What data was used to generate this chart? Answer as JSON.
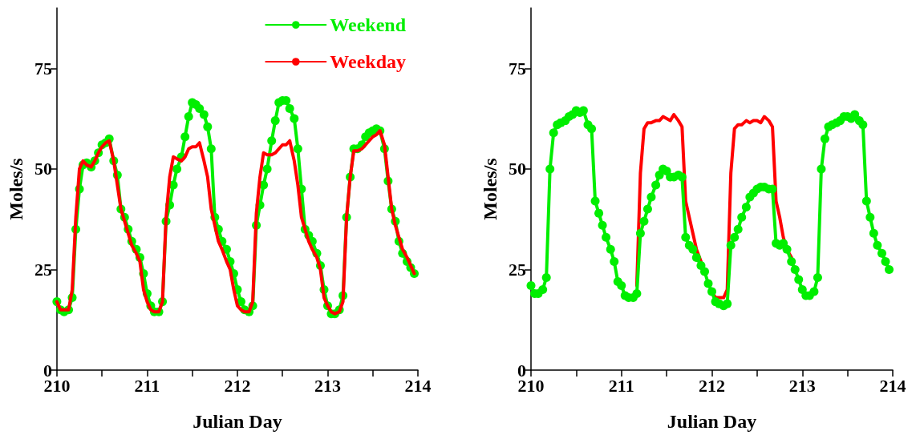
{
  "chart_data": [
    {
      "type": "line",
      "xlabel": "Julian Day",
      "ylabel": "Moles/s",
      "xlim": [
        210,
        214
      ],
      "ylim": [
        0,
        90
      ],
      "xticks": [
        210,
        {
          "value": 210.5,
          "label": null
        },
        211,
        {
          "value": 211.5,
          "label": null
        },
        212,
        {
          "value": 212.5,
          "label": null
        },
        213,
        {
          "value": 213.5,
          "label": null
        },
        214
      ],
      "yticks": [
        0,
        25,
        50,
        75
      ],
      "grid": false,
      "legend": "top right",
      "line_style": "solid",
      "x": [
        210,
        210.04,
        210.08,
        210.13,
        210.17,
        210.21,
        210.25,
        210.29,
        210.33,
        210.38,
        210.42,
        210.46,
        210.5,
        210.54,
        210.58,
        210.63,
        210.67,
        210.71,
        210.75,
        210.79,
        210.83,
        210.88,
        210.92,
        210.96,
        211,
        211.04,
        211.08,
        211.13,
        211.17,
        211.21,
        211.25,
        211.29,
        211.33,
        211.38,
        211.42,
        211.46,
        211.5,
        211.54,
        211.58,
        211.63,
        211.67,
        211.71,
        211.75,
        211.79,
        211.83,
        211.88,
        211.92,
        211.96,
        212,
        212.04,
        212.08,
        212.13,
        212.17,
        212.21,
        212.25,
        212.29,
        212.33,
        212.38,
        212.42,
        212.46,
        212.5,
        212.54,
        212.58,
        212.63,
        212.67,
        212.71,
        212.75,
        212.79,
        212.83,
        212.88,
        212.92,
        212.96,
        213,
        213.04,
        213.08,
        213.13,
        213.17,
        213.21,
        213.25,
        213.29,
        213.33,
        213.38,
        213.42,
        213.46,
        213.5,
        213.54,
        213.58,
        213.63,
        213.67,
        213.71,
        213.75,
        213.79,
        213.83,
        213.88,
        213.92,
        213.96
      ],
      "series": [
        {
          "name": "Weekend",
          "color": "#00ee00",
          "marker": "circle",
          "values": [
            17,
            15,
            14.5,
            15,
            18,
            35,
            45,
            51,
            51.5,
            50.5,
            52,
            54,
            56,
            56.5,
            57.5,
            52,
            48.5,
            40,
            38,
            35,
            32,
            30,
            28,
            24,
            19,
            16,
            14.5,
            14.5,
            17,
            37,
            41,
            46,
            50,
            53,
            58,
            63,
            66.5,
            66,
            65,
            63.5,
            60.5,
            55,
            38,
            35,
            32,
            30,
            27,
            24,
            20,
            17,
            15,
            14.5,
            16,
            36,
            41,
            46,
            50,
            57,
            62,
            66.5,
            67,
            67,
            65,
            62.5,
            55,
            45,
            35,
            33.5,
            32,
            29,
            26,
            20,
            16,
            14,
            14,
            15,
            18.5,
            38,
            48,
            55,
            55,
            56,
            58,
            59,
            59.5,
            60,
            59.5,
            55,
            47,
            40,
            37,
            32,
            29,
            27,
            25.5,
            24
          ]
        },
        {
          "name": "Weekday",
          "color": "#ff0000",
          "marker": "none",
          "values": [
            17,
            15,
            15,
            15,
            20,
            38,
            50,
            52,
            51,
            50.5,
            52,
            54,
            55.5,
            56.5,
            57,
            52,
            46,
            40,
            37,
            34,
            31,
            29,
            27,
            20,
            17,
            15,
            14.5,
            14.5,
            17,
            38,
            48,
            53,
            52.5,
            52,
            53,
            55,
            55.5,
            55.5,
            56.5,
            52,
            48,
            40,
            36,
            32,
            30,
            27,
            25,
            20,
            16,
            15,
            14.5,
            14.5,
            17,
            39,
            48,
            54,
            53.5,
            53.5,
            54,
            55,
            56,
            56,
            57,
            52,
            46,
            38,
            35,
            32,
            30,
            28,
            25,
            18,
            16,
            14.5,
            14,
            14.5,
            17,
            38,
            48,
            54.5,
            54.5,
            55,
            56,
            57,
            58,
            58.5,
            59.5,
            56,
            48,
            40,
            36,
            33,
            30,
            28,
            26,
            24
          ]
        }
      ]
    },
    {
      "type": "line",
      "xlabel": "Julian Day",
      "ylabel": "Moles/s",
      "xlim": [
        210,
        214
      ],
      "ylim": [
        0,
        90
      ],
      "xticks": [
        210,
        {
          "value": 210.5,
          "label": null
        },
        211,
        {
          "value": 211.5,
          "label": null
        },
        212,
        {
          "value": 212.5,
          "label": null
        },
        213,
        {
          "value": 213.5,
          "label": null
        },
        214
      ],
      "yticks": [
        0,
        25,
        50,
        75
      ],
      "grid": false,
      "line_style": "solid",
      "x": [
        210,
        210.04,
        210.08,
        210.13,
        210.17,
        210.21,
        210.25,
        210.29,
        210.33,
        210.38,
        210.42,
        210.46,
        210.5,
        210.54,
        210.58,
        210.63,
        210.67,
        210.71,
        210.75,
        210.79,
        210.83,
        210.88,
        210.92,
        210.96,
        211,
        211.04,
        211.08,
        211.13,
        211.17,
        211.21,
        211.25,
        211.29,
        211.33,
        211.38,
        211.42,
        211.46,
        211.5,
        211.54,
        211.58,
        211.63,
        211.67,
        211.71,
        211.75,
        211.79,
        211.83,
        211.88,
        211.92,
        211.96,
        212,
        212.04,
        212.08,
        212.13,
        212.17,
        212.21,
        212.25,
        212.29,
        212.33,
        212.38,
        212.42,
        212.46,
        212.5,
        212.54,
        212.58,
        212.63,
        212.67,
        212.71,
        212.75,
        212.79,
        212.83,
        212.88,
        212.92,
        212.96,
        213,
        213.04,
        213.08,
        213.13,
        213.17,
        213.21,
        213.25,
        213.29,
        213.33,
        213.38,
        213.42,
        213.46,
        213.5,
        213.54,
        213.58,
        213.63,
        213.67,
        213.71,
        213.75,
        213.79,
        213.83,
        213.88,
        213.92,
        213.96
      ],
      "series": [
        {
          "color": "#ff0000",
          "marker": "none",
          "values": [
            null,
            null,
            null,
            null,
            null,
            null,
            null,
            null,
            null,
            null,
            null,
            null,
            null,
            null,
            null,
            null,
            null,
            null,
            null,
            null,
            null,
            null,
            null,
            null,
            null,
            null,
            null,
            null,
            21,
            49,
            60,
            61.5,
            61.5,
            62,
            62,
            63,
            62.5,
            62,
            63.5,
            62,
            60.5,
            42,
            38,
            34,
            30,
            27,
            null,
            null,
            19.5,
            18,
            18,
            18,
            20,
            49,
            60,
            61,
            61,
            62,
            61.5,
            62,
            62,
            61.5,
            63,
            62,
            60.5,
            42,
            38,
            33,
            30,
            28,
            null,
            null,
            null,
            null,
            null,
            null,
            null,
            null,
            null,
            null,
            null,
            null,
            null,
            null,
            null,
            null,
            null,
            null,
            null,
            null,
            null,
            null,
            null,
            null,
            null,
            null
          ]
        },
        {
          "color": "#00ee00",
          "marker": "circle",
          "values": [
            21,
            19,
            19,
            20,
            23,
            50,
            59,
            61,
            61.5,
            62,
            63,
            63.5,
            64.5,
            64,
            64.5,
            61,
            60,
            42,
            39,
            36,
            33,
            30,
            27,
            22,
            21,
            18.5,
            18,
            18,
            19,
            34,
            37,
            40,
            43,
            46,
            48.5,
            50,
            49.5,
            48,
            48,
            48.5,
            48,
            33,
            31,
            30,
            28,
            26,
            24.5,
            21.5,
            19.5,
            17,
            16.5,
            16,
            16.5,
            31,
            33,
            35,
            38,
            40.5,
            43,
            44,
            45,
            45.5,
            45.5,
            45,
            45,
            31.5,
            31,
            31.5,
            30,
            27,
            25,
            22.5,
            20,
            18.5,
            18.5,
            19.5,
            23,
            50,
            57.5,
            60.5,
            61,
            61.5,
            62,
            63,
            63,
            62.5,
            63.5,
            62,
            61,
            42,
            38,
            34,
            31,
            29,
            27,
            25
          ]
        }
      ]
    }
  ]
}
